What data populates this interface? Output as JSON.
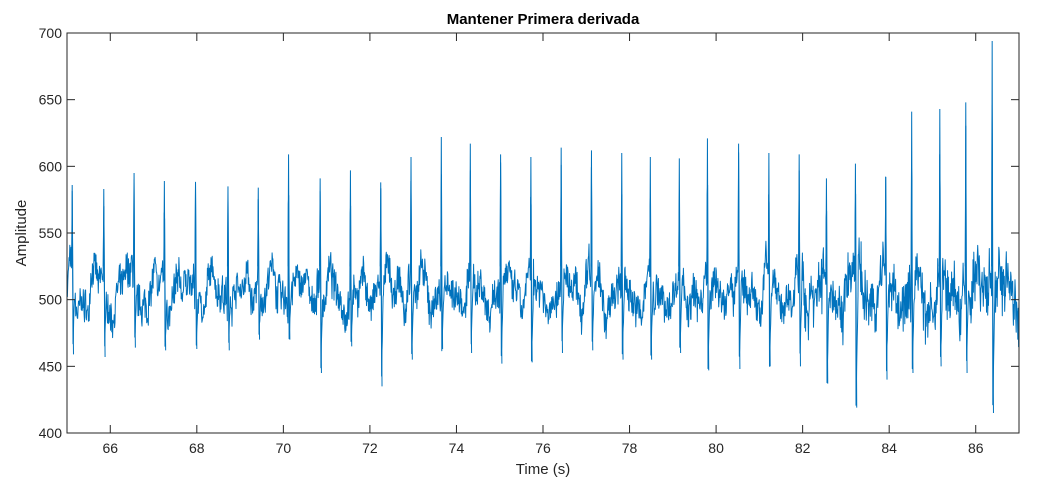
{
  "chart_data": {
    "type": "line",
    "title": "Mantener Primera derivada",
    "xlabel": "Time (s)",
    "ylabel": "Amplitude",
    "xlim": [
      65,
      87
    ],
    "ylim": [
      400,
      700
    ],
    "xticks": [
      66,
      68,
      70,
      72,
      74,
      76,
      78,
      80,
      82,
      84,
      86
    ],
    "yticks": [
      400,
      450,
      500,
      550,
      600,
      650,
      700
    ],
    "grid": false,
    "line_color": "#0072bd",
    "baseline": 505,
    "noise_amplitude": 22,
    "series": [
      {
        "name": "",
        "peaks": [
          {
            "x": 65.12,
            "y": 586,
            "min": 459
          },
          {
            "x": 65.85,
            "y": 583,
            "min": 457
          },
          {
            "x": 66.55,
            "y": 595,
            "min": 464
          },
          {
            "x": 67.25,
            "y": 589,
            "min": 462
          },
          {
            "x": 67.97,
            "y": 588,
            "min": 463
          },
          {
            "x": 68.72,
            "y": 585,
            "min": 462
          },
          {
            "x": 69.42,
            "y": 584,
            "min": 470
          },
          {
            "x": 70.12,
            "y": 609,
            "min": 470
          },
          {
            "x": 70.85,
            "y": 591,
            "min": 445
          },
          {
            "x": 71.55,
            "y": 597,
            "min": 465
          },
          {
            "x": 72.25,
            "y": 588,
            "min": 435
          },
          {
            "x": 72.95,
            "y": 607,
            "min": 455
          },
          {
            "x": 73.65,
            "y": 622,
            "min": 463
          },
          {
            "x": 74.32,
            "y": 617,
            "min": 460
          },
          {
            "x": 75.02,
            "y": 609,
            "min": 452
          },
          {
            "x": 75.72,
            "y": 607,
            "min": 453
          },
          {
            "x": 76.42,
            "y": 614,
            "min": 460
          },
          {
            "x": 77.12,
            "y": 612,
            "min": 462
          },
          {
            "x": 77.82,
            "y": 610,
            "min": 455
          },
          {
            "x": 78.48,
            "y": 607,
            "min": 455
          },
          {
            "x": 79.15,
            "y": 606,
            "min": 460
          },
          {
            "x": 79.8,
            "y": 621,
            "min": 447
          },
          {
            "x": 80.52,
            "y": 617,
            "min": 448
          },
          {
            "x": 81.22,
            "y": 610,
            "min": 450
          },
          {
            "x": 81.92,
            "y": 609,
            "min": 450
          },
          {
            "x": 82.55,
            "y": 591,
            "min": 437
          },
          {
            "x": 83.22,
            "y": 602,
            "min": 419
          },
          {
            "x": 83.92,
            "y": 592,
            "min": 440
          },
          {
            "x": 84.52,
            "y": 641,
            "min": 445
          },
          {
            "x": 85.17,
            "y": 643,
            "min": 450
          },
          {
            "x": 85.77,
            "y": 648,
            "min": 445
          },
          {
            "x": 86.38,
            "y": 694,
            "min": 415
          }
        ]
      }
    ]
  }
}
